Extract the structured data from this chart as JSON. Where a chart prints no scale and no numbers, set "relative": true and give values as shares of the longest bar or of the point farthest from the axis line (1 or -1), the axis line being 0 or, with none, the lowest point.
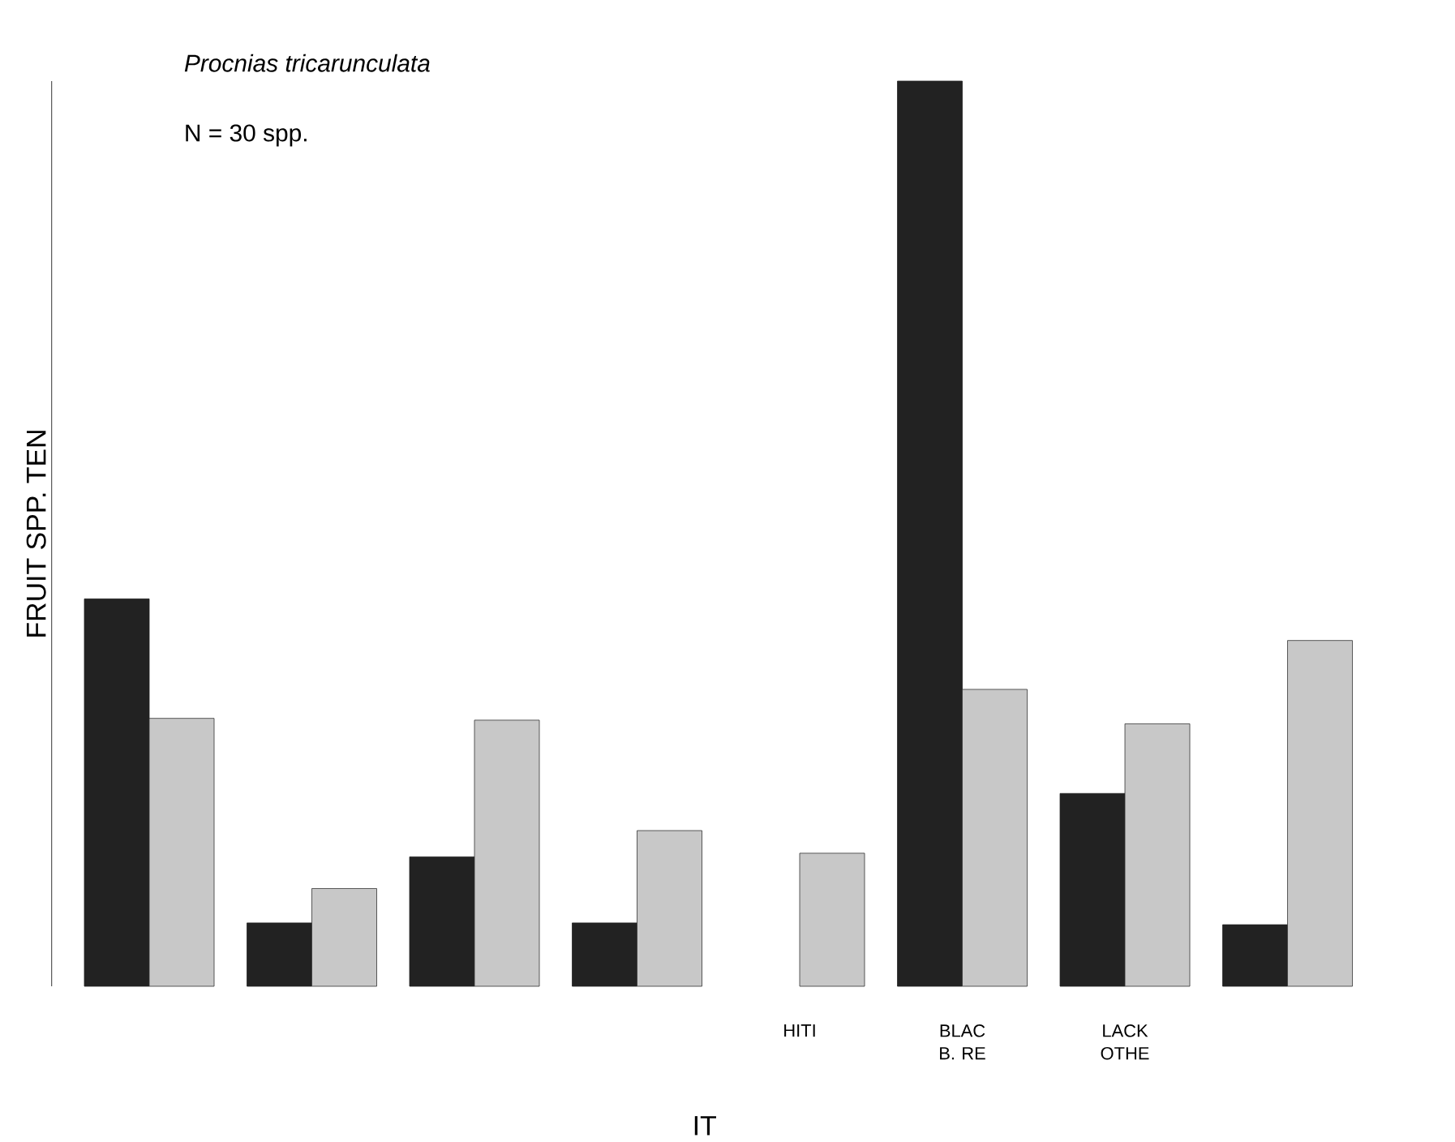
{
  "chart_data": {
    "type": "bar",
    "relative": true,
    "ylabel": "FRUIT SPP. TEN",
    "xlabel": "IT",
    "categories": [
      null,
      null,
      null,
      null,
      "HITI",
      "BLAC B. RE",
      "LACK OTHE",
      null
    ],
    "annotations": [
      "Procnias tricarunculata",
      "N = 30 spp."
    ],
    "series": [
      {
        "color": "#222222",
        "values": [
          0.428,
          0.07,
          0.143,
          0.07,
          null,
          1,
          0.213,
          0.068
        ]
      },
      {
        "color": "#c8c8c8",
        "values": [
          0.296,
          0.108,
          0.294,
          0.172,
          0.147,
          0.328,
          0.29,
          0.382
        ]
      }
    ]
  }
}
